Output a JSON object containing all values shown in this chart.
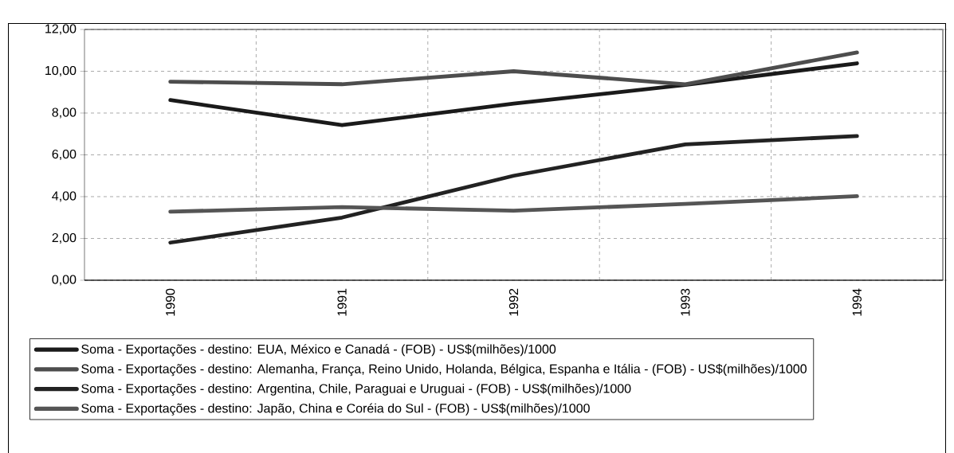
{
  "chart_data": {
    "type": "line",
    "categories": [
      "1990",
      "1991",
      "1992",
      "1993",
      "1994"
    ],
    "series": [
      {
        "name": "Soma - Exportações - destino: EUA, México e Canadá - (FOB) - US$(milhões)/1000",
        "color": "#1a1a1a",
        "values": [
          8.62,
          7.42,
          8.45,
          9.35,
          10.38
        ]
      },
      {
        "name": "Soma - Exportações - destino: Alemanha, França, Reino Unido, Holanda, Bélgica, Espanha e Itália - (FOB) - US$(milhões)/1000",
        "color": "#4d4d4d",
        "values": [
          9.5,
          9.38,
          10.0,
          9.38,
          10.9
        ]
      },
      {
        "name": "Soma - Exportações - destino: Argentina, Chile, Paraguai e Uruguai - (FOB) - US$(milhões)/1000",
        "color": "#222222",
        "values": [
          1.8,
          3.0,
          5.0,
          6.5,
          6.9
        ]
      },
      {
        "name": "Soma - Exportações - destino: Japão, China e Coréia do Sul - (FOB) - US$(milhões)/1000",
        "color": "#555555",
        "values": [
          3.28,
          3.5,
          3.33,
          3.65,
          4.02
        ]
      }
    ],
    "ylim": [
      0,
      12
    ],
    "yticks": [
      {
        "value": 0,
        "label": "0,00"
      },
      {
        "value": 2,
        "label": "2,00"
      },
      {
        "value": 4,
        "label": "4,00"
      },
      {
        "value": 6,
        "label": "6,00"
      },
      {
        "value": 8,
        "label": "8,00"
      },
      {
        "value": 10,
        "label": "10,00"
      },
      {
        "value": 12,
        "label": "12,00"
      }
    ],
    "grid": true,
    "legend": "bottom",
    "marker": "none",
    "line_style": "solid"
  }
}
